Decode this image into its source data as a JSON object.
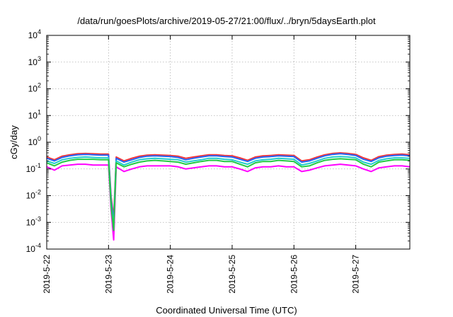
{
  "chart_data": {
    "type": "line",
    "title": "/data/run/goesPlots/archive/2019-05-27/21:00/flux/../bryn/5daysEarth.plot",
    "xlabel": "Coordinated Universal Time (UTC)",
    "ylabel": "cGy/day",
    "yscale": "log",
    "ylim": [
      0.0001,
      10000
    ],
    "y_ticks": [
      {
        "value": 0.0001,
        "base": "10",
        "exp": "-4"
      },
      {
        "value": 0.001,
        "base": "10",
        "exp": "-3"
      },
      {
        "value": 0.01,
        "base": "10",
        "exp": "-2"
      },
      {
        "value": 0.1,
        "base": "10",
        "exp": "-1"
      },
      {
        "value": 1,
        "base": "10",
        "exp": "0"
      },
      {
        "value": 10,
        "base": "10",
        "exp": "1"
      },
      {
        "value": 100,
        "base": "10",
        "exp": "2"
      },
      {
        "value": 1000,
        "base": "10",
        "exp": "3"
      },
      {
        "value": 10000,
        "base": "10",
        "exp": "4"
      }
    ],
    "xlim": [
      "2019-05-22",
      "2019-05-27T21:00"
    ],
    "x_ticks": [
      "2019-5-22",
      "2019-5-23",
      "2019-5-24",
      "2019-5-25",
      "2019-5-26",
      "2019-5-27"
    ],
    "grid": true,
    "legend": "none",
    "series": [
      {
        "color": "#ff00ff",
        "x": [
          "2019-05-22T00:00",
          "2019-05-22T03:00",
          "2019-05-22T06:00",
          "2019-05-22T09:00",
          "2019-05-22T12:00",
          "2019-05-22T15:00",
          "2019-05-22T18:00",
          "2019-05-22T21:00",
          "2019-05-23T00:00",
          "2019-05-23T01:00",
          "2019-05-23T02:00",
          "2019-05-23T03:00",
          "2019-05-23T06:00",
          "2019-05-23T09:00",
          "2019-05-23T12:00",
          "2019-05-23T15:00",
          "2019-05-23T18:00",
          "2019-05-23T21:00",
          "2019-05-24T00:00",
          "2019-05-24T03:00",
          "2019-05-24T06:00",
          "2019-05-24T09:00",
          "2019-05-24T12:00",
          "2019-05-24T15:00",
          "2019-05-24T18:00",
          "2019-05-24T21:00",
          "2019-05-25T00:00",
          "2019-05-25T03:00",
          "2019-05-25T06:00",
          "2019-05-25T09:00",
          "2019-05-25T12:00",
          "2019-05-25T15:00",
          "2019-05-25T18:00",
          "2019-05-25T21:00",
          "2019-05-26T00:00",
          "2019-05-26T03:00",
          "2019-05-26T06:00",
          "2019-05-26T09:00",
          "2019-05-26T12:00",
          "2019-05-26T15:00",
          "2019-05-26T18:00",
          "2019-05-26T21:00",
          "2019-05-27T00:00",
          "2019-05-27T03:00",
          "2019-05-27T06:00",
          "2019-05-27T09:00",
          "2019-05-27T12:00",
          "2019-05-27T15:00",
          "2019-05-27T18:00",
          "2019-05-27T21:00"
        ],
        "y": [
          0.12,
          0.09,
          0.13,
          0.14,
          0.15,
          0.15,
          0.14,
          0.14,
          0.14,
          0.0028,
          0.00022,
          0.12,
          0.08,
          0.1,
          0.12,
          0.13,
          0.13,
          0.13,
          0.13,
          0.12,
          0.1,
          0.11,
          0.12,
          0.13,
          0.13,
          0.12,
          0.12,
          0.1,
          0.08,
          0.11,
          0.12,
          0.12,
          0.13,
          0.12,
          0.12,
          0.08,
          0.09,
          0.11,
          0.13,
          0.14,
          0.15,
          0.14,
          0.13,
          0.1,
          0.08,
          0.11,
          0.12,
          0.13,
          0.13,
          0.12
        ]
      },
      {
        "color": "#ff3333",
        "x": [
          "2019-05-22T00:00",
          "2019-05-22T03:00",
          "2019-05-22T06:00",
          "2019-05-22T09:00",
          "2019-05-22T12:00",
          "2019-05-22T15:00",
          "2019-05-22T18:00",
          "2019-05-22T21:00",
          "2019-05-23T00:00",
          "2019-05-23T01:00",
          "2019-05-23T02:00",
          "2019-05-23T03:00",
          "2019-05-23T06:00",
          "2019-05-23T09:00",
          "2019-05-23T12:00",
          "2019-05-23T15:00",
          "2019-05-23T18:00",
          "2019-05-23T21:00",
          "2019-05-24T00:00",
          "2019-05-24T03:00",
          "2019-05-24T06:00",
          "2019-05-24T09:00",
          "2019-05-24T12:00",
          "2019-05-24T15:00",
          "2019-05-24T18:00",
          "2019-05-24T21:00",
          "2019-05-25T00:00",
          "2019-05-25T03:00",
          "2019-05-25T06:00",
          "2019-05-25T09:00",
          "2019-05-25T12:00",
          "2019-05-25T15:00",
          "2019-05-25T18:00",
          "2019-05-25T21:00",
          "2019-05-26T00:00",
          "2019-05-26T03:00",
          "2019-05-26T06:00",
          "2019-05-26T09:00",
          "2019-05-26T12:00",
          "2019-05-26T15:00",
          "2019-05-26T18:00",
          "2019-05-26T21:00",
          "2019-05-27T00:00",
          "2019-05-27T03:00",
          "2019-05-27T06:00",
          "2019-05-27T09:00",
          "2019-05-27T12:00",
          "2019-05-27T15:00",
          "2019-05-27T18:00",
          "2019-05-27T21:00"
        ],
        "y": [
          0.28,
          0.22,
          0.3,
          0.34,
          0.37,
          0.38,
          0.37,
          0.36,
          0.36,
          0.009,
          0.0015,
          0.28,
          0.2,
          0.25,
          0.3,
          0.33,
          0.34,
          0.33,
          0.32,
          0.3,
          0.25,
          0.28,
          0.31,
          0.34,
          0.34,
          0.32,
          0.31,
          0.26,
          0.21,
          0.28,
          0.31,
          0.32,
          0.34,
          0.33,
          0.32,
          0.2,
          0.22,
          0.28,
          0.34,
          0.38,
          0.4,
          0.38,
          0.35,
          0.26,
          0.21,
          0.29,
          0.33,
          0.35,
          0.36,
          0.34
        ]
      },
      {
        "color": "#2266ff",
        "x": [
          "2019-05-22T00:00",
          "2019-05-22T03:00",
          "2019-05-22T06:00",
          "2019-05-22T09:00",
          "2019-05-22T12:00",
          "2019-05-22T15:00",
          "2019-05-22T18:00",
          "2019-05-22T21:00",
          "2019-05-23T00:00",
          "2019-05-23T01:00",
          "2019-05-23T02:00",
          "2019-05-23T03:00",
          "2019-05-23T06:00",
          "2019-05-23T09:00",
          "2019-05-23T12:00",
          "2019-05-23T15:00",
          "2019-05-23T18:00",
          "2019-05-23T21:00",
          "2019-05-24T00:00",
          "2019-05-24T03:00",
          "2019-05-24T06:00",
          "2019-05-24T09:00",
          "2019-05-24T12:00",
          "2019-05-24T15:00",
          "2019-05-24T18:00",
          "2019-05-24T21:00",
          "2019-05-25T00:00",
          "2019-05-25T03:00",
          "2019-05-25T06:00",
          "2019-05-25T09:00",
          "2019-05-25T12:00",
          "2019-05-25T15:00",
          "2019-05-25T18:00",
          "2019-05-25T21:00",
          "2019-05-26T00:00",
          "2019-05-26T03:00",
          "2019-05-26T06:00",
          "2019-05-26T09:00",
          "2019-05-26T12:00",
          "2019-05-26T15:00",
          "2019-05-26T18:00",
          "2019-05-26T21:00",
          "2019-05-27T00:00",
          "2019-05-27T03:00",
          "2019-05-27T06:00",
          "2019-05-27T09:00",
          "2019-05-27T12:00",
          "2019-05-27T15:00",
          "2019-05-27T18:00",
          "2019-05-27T21:00"
        ],
        "y": [
          0.25,
          0.2,
          0.27,
          0.31,
          0.34,
          0.35,
          0.34,
          0.33,
          0.33,
          0.007,
          0.001,
          0.25,
          0.18,
          0.22,
          0.27,
          0.3,
          0.31,
          0.3,
          0.29,
          0.27,
          0.22,
          0.25,
          0.28,
          0.31,
          0.31,
          0.29,
          0.28,
          0.23,
          0.19,
          0.25,
          0.28,
          0.29,
          0.31,
          0.3,
          0.29,
          0.18,
          0.2,
          0.25,
          0.31,
          0.35,
          0.37,
          0.35,
          0.32,
          0.23,
          0.19,
          0.26,
          0.3,
          0.32,
          0.33,
          0.31
        ]
      },
      {
        "color": "#22cccc",
        "x": [
          "2019-05-22T00:00",
          "2019-05-22T03:00",
          "2019-05-22T06:00",
          "2019-05-22T09:00",
          "2019-05-22T12:00",
          "2019-05-22T15:00",
          "2019-05-22T18:00",
          "2019-05-22T21:00",
          "2019-05-23T00:00",
          "2019-05-23T01:00",
          "2019-05-23T02:00",
          "2019-05-23T03:00",
          "2019-05-23T06:00",
          "2019-05-23T09:00",
          "2019-05-23T12:00",
          "2019-05-23T15:00",
          "2019-05-23T18:00",
          "2019-05-23T21:00",
          "2019-05-24T00:00",
          "2019-05-24T03:00",
          "2019-05-24T06:00",
          "2019-05-24T09:00",
          "2019-05-24T12:00",
          "2019-05-24T15:00",
          "2019-05-24T18:00",
          "2019-05-24T21:00",
          "2019-05-25T00:00",
          "2019-05-25T03:00",
          "2019-05-25T06:00",
          "2019-05-25T09:00",
          "2019-05-25T12:00",
          "2019-05-25T15:00",
          "2019-05-25T18:00",
          "2019-05-25T21:00",
          "2019-05-26T00:00",
          "2019-05-26T03:00",
          "2019-05-26T06:00",
          "2019-05-26T09:00",
          "2019-05-26T12:00",
          "2019-05-26T15:00",
          "2019-05-26T18:00",
          "2019-05-26T21:00",
          "2019-05-27T00:00",
          "2019-05-27T03:00",
          "2019-05-27T06:00",
          "2019-05-27T09:00",
          "2019-05-27T12:00",
          "2019-05-27T15:00",
          "2019-05-27T18:00",
          "2019-05-27T21:00"
        ],
        "y": [
          0.2,
          0.16,
          0.22,
          0.25,
          0.27,
          0.28,
          0.27,
          0.26,
          0.26,
          0.005,
          0.0007,
          0.2,
          0.14,
          0.18,
          0.22,
          0.24,
          0.25,
          0.24,
          0.23,
          0.22,
          0.18,
          0.2,
          0.22,
          0.25,
          0.25,
          0.23,
          0.22,
          0.18,
          0.15,
          0.2,
          0.22,
          0.23,
          0.25,
          0.24,
          0.23,
          0.14,
          0.16,
          0.2,
          0.25,
          0.28,
          0.29,
          0.28,
          0.26,
          0.18,
          0.15,
          0.21,
          0.24,
          0.26,
          0.26,
          0.25
        ]
      },
      {
        "color": "#22cc44",
        "x": [
          "2019-05-22T00:00",
          "2019-05-22T03:00",
          "2019-05-22T06:00",
          "2019-05-22T09:00",
          "2019-05-22T12:00",
          "2019-05-22T15:00",
          "2019-05-22T18:00",
          "2019-05-22T21:00",
          "2019-05-23T00:00",
          "2019-05-23T01:00",
          "2019-05-23T02:00",
          "2019-05-23T03:00",
          "2019-05-23T06:00",
          "2019-05-23T09:00",
          "2019-05-23T12:00",
          "2019-05-23T15:00",
          "2019-05-23T18:00",
          "2019-05-23T21:00",
          "2019-05-24T00:00",
          "2019-05-24T03:00",
          "2019-05-24T06:00",
          "2019-05-24T09:00",
          "2019-05-24T12:00",
          "2019-05-24T15:00",
          "2019-05-24T18:00",
          "2019-05-24T21:00",
          "2019-05-25T00:00",
          "2019-05-25T03:00",
          "2019-05-25T06:00",
          "2019-05-25T09:00",
          "2019-05-25T12:00",
          "2019-05-25T15:00",
          "2019-05-25T18:00",
          "2019-05-25T21:00",
          "2019-05-26T00:00",
          "2019-05-26T03:00",
          "2019-05-26T06:00",
          "2019-05-26T09:00",
          "2019-05-26T12:00",
          "2019-05-26T15:00",
          "2019-05-26T18:00",
          "2019-05-26T21:00",
          "2019-05-27T00:00",
          "2019-05-27T03:00",
          "2019-05-27T06:00",
          "2019-05-27T09:00",
          "2019-05-27T12:00",
          "2019-05-27T15:00",
          "2019-05-27T18:00",
          "2019-05-27T21:00"
        ],
        "y": [
          0.17,
          0.13,
          0.18,
          0.21,
          0.23,
          0.23,
          0.23,
          0.22,
          0.22,
          0.004,
          0.0005,
          0.17,
          0.12,
          0.15,
          0.18,
          0.2,
          0.21,
          0.2,
          0.19,
          0.18,
          0.15,
          0.17,
          0.19,
          0.21,
          0.21,
          0.19,
          0.19,
          0.15,
          0.12,
          0.17,
          0.19,
          0.19,
          0.21,
          0.2,
          0.19,
          0.12,
          0.13,
          0.17,
          0.21,
          0.23,
          0.24,
          0.23,
          0.22,
          0.15,
          0.12,
          0.18,
          0.2,
          0.22,
          0.22,
          0.21
        ]
      }
    ]
  }
}
